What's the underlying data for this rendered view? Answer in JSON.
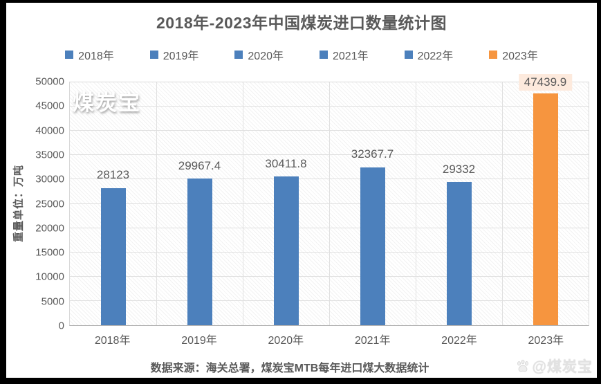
{
  "chart_data": {
    "type": "bar",
    "title": "2018年-2023年中国煤炭进口数量统计图",
    "ylabel": "重量单位：万吨",
    "xlabel": "",
    "categories": [
      "2018年",
      "2019年",
      "2020年",
      "2021年",
      "2022年",
      "2023年"
    ],
    "values": [
      28123,
      29967.4,
      30411.8,
      32367.7,
      29332,
      47439.9
    ],
    "value_labels": [
      "28123",
      "29967.4",
      "30411.8",
      "32367.7",
      "29332",
      "47439.9"
    ],
    "bar_colors": [
      "#4c80bc",
      "#4c80bc",
      "#4c80bc",
      "#4c80bc",
      "#4c80bc",
      "#f6953f"
    ],
    "highlight_index": 5,
    "highlight_label_bg": "#fdeadd",
    "ylim": [
      0,
      50000
    ],
    "ytick_step": 5000,
    "yticks": [
      "0",
      "5000",
      "10000",
      "15000",
      "20000",
      "25000",
      "30000",
      "35000",
      "40000",
      "45000",
      "50000"
    ],
    "legend": [
      {
        "label": "2018年",
        "color": "#4c80bc"
      },
      {
        "label": "2019年",
        "color": "#4c80bc"
      },
      {
        "label": "2020年",
        "color": "#4c80bc"
      },
      {
        "label": "2021年",
        "color": "#4c80bc"
      },
      {
        "label": "2022年",
        "color": "#4c80bc"
      },
      {
        "label": "2023年",
        "color": "#f6953f"
      }
    ],
    "legend_position": "top",
    "grid": true
  },
  "watermarks": {
    "plot_text": "煤炭宝",
    "bottom_right_text": "@煤炭宝"
  },
  "footer": {
    "source_text": "数据来源：海关总署，煤炭宝MTB每年进口煤大数据统计"
  },
  "colors": {
    "bar_blue": "#4c80bc",
    "bar_orange": "#f6953f",
    "text_gray": "#595959",
    "gridline": "#e0e0e0",
    "highlight_bg": "#fdeadd",
    "frame": "#000000"
  }
}
